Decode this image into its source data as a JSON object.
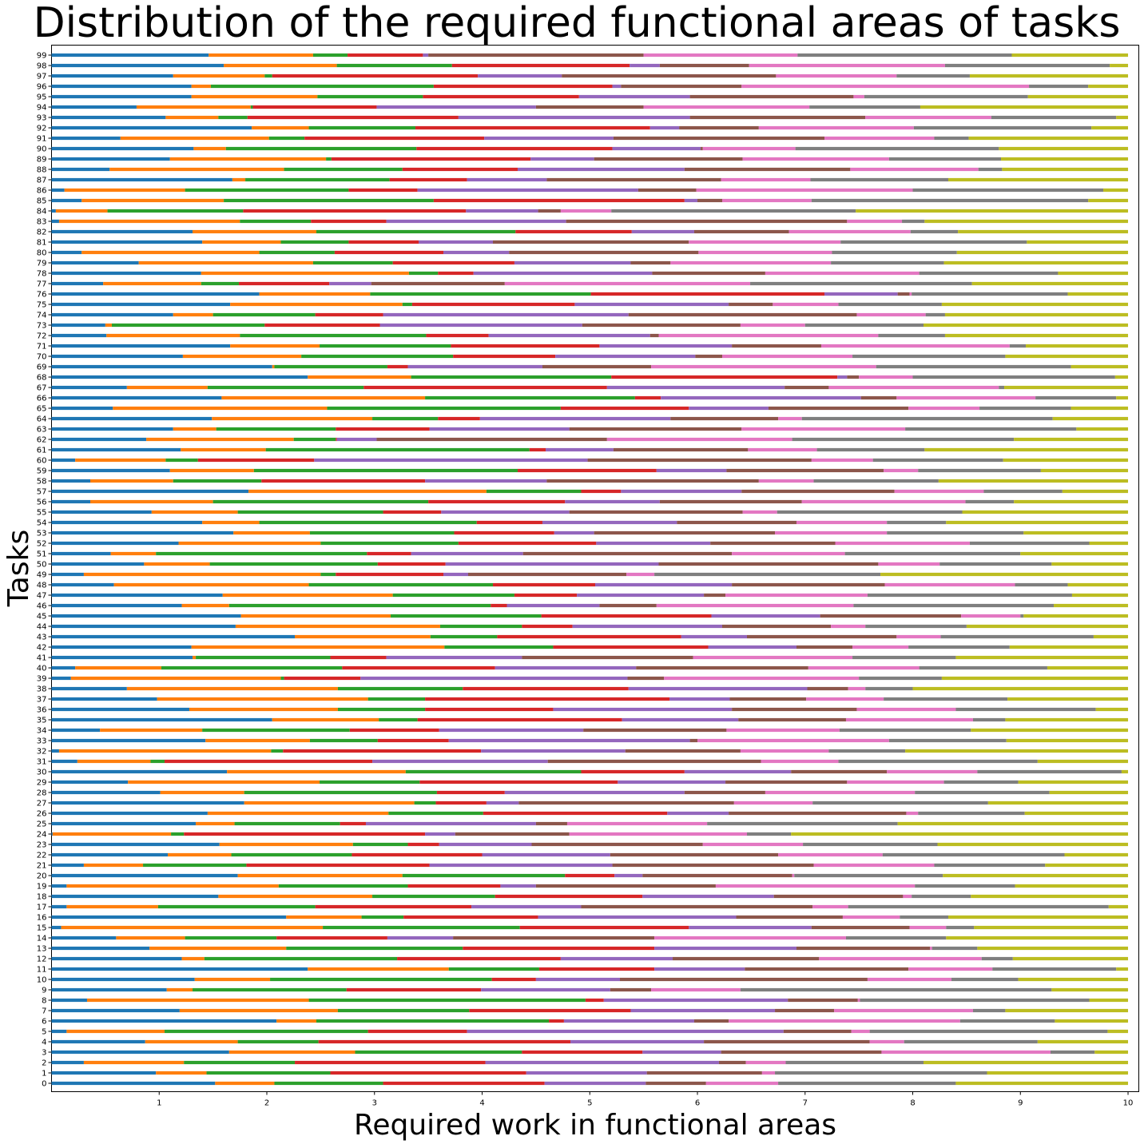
{
  "chart_data": {
    "type": "bar",
    "orientation": "horizontal",
    "stacked": true,
    "title": "Distribution of the required functional areas of tasks",
    "x_label": "Required work in functional areas",
    "y_label": "Tasks",
    "xlim": [
      0,
      10.1
    ],
    "xticks": [
      1,
      2,
      3,
      4,
      5,
      6,
      7,
      8,
      9,
      10
    ],
    "categories": [
      "0",
      "1",
      "2",
      "3",
      "4",
      "5",
      "6",
      "7",
      "8",
      "9",
      "10",
      "11",
      "12",
      "13",
      "14",
      "15",
      "16",
      "17",
      "18",
      "19",
      "20",
      "21",
      "22",
      "23",
      "24",
      "25",
      "26",
      "27",
      "28",
      "29",
      "30",
      "31",
      "32",
      "33",
      "34",
      "35",
      "36",
      "37",
      "38",
      "39",
      "40",
      "41",
      "42",
      "43",
      "44",
      "45",
      "46",
      "47",
      "48",
      "49",
      "50",
      "51",
      "52",
      "53",
      "54",
      "55",
      "56",
      "57",
      "58",
      "59",
      "60",
      "61",
      "62",
      "63",
      "64",
      "65",
      "66",
      "67",
      "68",
      "69",
      "70",
      "71",
      "72",
      "73",
      "74",
      "75",
      "76",
      "77",
      "78",
      "79",
      "80",
      "81",
      "82",
      "83",
      "84",
      "85",
      "86",
      "87",
      "88",
      "89",
      "90",
      "91",
      "92",
      "93",
      "94",
      "95",
      "96",
      "97",
      "98",
      "99"
    ],
    "series": [
      {
        "color": "#1f77b4",
        "values": [
          1.52,
          0.97,
          0.3,
          1.65,
          0.87,
          0.14,
          2.09,
          1.19,
          0.33,
          1.07,
          1.33,
          2.38,
          1.21,
          0.91,
          0.6,
          0.09,
          2.18,
          0.14,
          1.55,
          0.14,
          1.73,
          0.3,
          1.08,
          1.56,
          0.01,
          1.34,
          1.45,
          1.79,
          1.01,
          0.71,
          1.63,
          0.24,
          0.07,
          1.43,
          0.45,
          2.05,
          1.28,
          0.98,
          0.7,
          0.18,
          0.22,
          1.31,
          1.3,
          2.26,
          1.71,
          1.76,
          1.21,
          1.59,
          0.58,
          0.3,
          0.86,
          0.55,
          1.18,
          1.69,
          1.4,
          0.93,
          0.36,
          1.83,
          0.36,
          1.1,
          0.22,
          1.2,
          0.88,
          1.13,
          1.49,
          0.57,
          1.58,
          0.7,
          2.38,
          2.05,
          1.22,
          1.66,
          0.51,
          0.5,
          1.13,
          1.66,
          1.93,
          0.48,
          1.39,
          0.81,
          0.28,
          1.4,
          1.31,
          0.07,
          0.04,
          0.28,
          0.12,
          1.68,
          0.54,
          1.1,
          1.32,
          0.64,
          1.86,
          1.06,
          0.79,
          1.3,
          1.3,
          1.13,
          1.6,
          1.46
        ]
      },
      {
        "color": "#ff7f0e",
        "values": [
          0.55,
          0.47,
          0.93,
          1.17,
          0.86,
          0.91,
          0.37,
          1.47,
          2.06,
          0.24,
          0.7,
          1.31,
          0.21,
          1.27,
          0.64,
          2.43,
          0.7,
          0.85,
          1.43,
          1.97,
          1.53,
          0.55,
          0.59,
          1.24,
          1.1,
          0.36,
          1.68,
          1.58,
          0.78,
          1.78,
          1.66,
          0.68,
          1.97,
          0.97,
          0.95,
          0.99,
          1.38,
          1.96,
          1.96,
          1.95,
          0.8,
          0.03,
          2.35,
          1.26,
          1.9,
          1.39,
          0.44,
          1.58,
          1.81,
          2.2,
          0.61,
          0.42,
          1.32,
          0.71,
          0.53,
          0.8,
          1.14,
          2.21,
          0.77,
          0.78,
          0.84,
          0.79,
          1.37,
          0.4,
          1.49,
          1.99,
          1.89,
          0.75,
          0.96,
          0.02,
          1.1,
          0.83,
          1.24,
          0.06,
          0.37,
          1.6,
          1.03,
          0.91,
          1.93,
          1.62,
          1.65,
          0.73,
          1.15,
          1.68,
          0.48,
          1.32,
          1.12,
          0.12,
          1.62,
          1.45,
          0.3,
          1.38,
          0.53,
          0.49,
          1.06,
          1.17,
          0.18,
          0.85,
          1.05,
          0.97
        ]
      },
      {
        "color": "#2ca02c",
        "values": [
          1.01,
          1.15,
          1.03,
          1.55,
          0.75,
          1.89,
          2.16,
          1.22,
          2.57,
          1.43,
          2.06,
          0.84,
          1.79,
          1.64,
          0.85,
          1.83,
          0.39,
          1.46,
          1.14,
          1.2,
          1.51,
          0.96,
          1.12,
          0.51,
          0.12,
          0.98,
          0.88,
          0.2,
          1.79,
          0.93,
          1.63,
          0.13,
          0.11,
          0.63,
          1.37,
          0.36,
          0.81,
          0.53,
          1.16,
          0.03,
          1.68,
          1.25,
          1.01,
          0.62,
          0.76,
          1.4,
          2.43,
          1.13,
          1.71,
          0.14,
          1.56,
          1.96,
          1.28,
          1.34,
          2.02,
          1.35,
          2.0,
          0.88,
          0.82,
          2.45,
          0.3,
          2.45,
          0.39,
          1.11,
          0.61,
          2.17,
          1.95,
          1.45,
          1.86,
          1.05,
          1.41,
          1.22,
          1.73,
          1.42,
          0.95,
          0.09,
          2.05,
          0.35,
          0.27,
          0.74,
          0.7,
          0.63,
          1.85,
          0.66,
          1.26,
          1.95,
          1.52,
          1.34,
          1.1,
          0.05,
          1.77,
          0.33,
          0.99,
          0.27,
          0.02,
          0.98,
          2.07,
          0.07,
          1.07,
          0.32
        ]
      },
      {
        "color": "#d62728",
        "values": [
          1.5,
          1.82,
          1.77,
          1.12,
          2.34,
          0.92,
          0.14,
          1.5,
          0.17,
          1.25,
          0.41,
          1.07,
          1.52,
          1.78,
          1.03,
          1.57,
          1.25,
          1.45,
          1.37,
          0.86,
          0.46,
          1.7,
          1.21,
          0.29,
          2.24,
          0.24,
          1.71,
          0.47,
          0.63,
          1.84,
          0.96,
          1.93,
          1.84,
          0.66,
          0.83,
          1.9,
          1.19,
          2.27,
          1.54,
          0.71,
          1.42,
          0.52,
          1.44,
          1.71,
          0.47,
          1.58,
          0.15,
          0.58,
          0.95,
          1.0,
          0.63,
          0.41,
          1.28,
          0.93,
          0.61,
          0.54,
          1.27,
          0.37,
          1.52,
          1.29,
          1.08,
          0.15,
          0.01,
          0.87,
          0.39,
          1.19,
          0.24,
          2.26,
          2.1,
          0.19,
          0.95,
          1.38,
          0.58,
          1.07,
          0.63,
          1.51,
          2.17,
          0.84,
          0.33,
          1.13,
          1.01,
          0.65,
          1.08,
          0.7,
          2.07,
          2.33,
          0.64,
          0.72,
          1.07,
          1.85,
          1.82,
          1.67,
          2.18,
          1.96,
          1.15,
          1.45,
          1.66,
          1.91,
          1.65,
          0.7
        ]
      },
      {
        "color": "#9467bd",
        "values": [
          0.94,
          1.12,
          2.17,
          0.73,
          1.24,
          2.94,
          1.21,
          1.34,
          1.71,
          1.2,
          0.78,
          0.84,
          1.04,
          1.32,
          0.61,
          1.14,
          1.84,
          1.02,
          1.22,
          0.33,
          0.26,
          1.7,
          1.19,
          0.86,
          0.28,
          1.58,
          0.57,
          0.3,
          1.67,
          1.0,
          0.99,
          1.63,
          1.34,
          2.24,
          1.34,
          1.08,
          1.66,
          0.56,
          1.66,
          2.48,
          1.31,
          1.26,
          0.82,
          0.61,
          1.39,
          1.01,
          0.86,
          1.18,
          1.27,
          0.23,
          1.98,
          1.04,
          1.06,
          0.37,
          1.25,
          1.19,
          0.88,
          1.12,
          1.13,
          0.65,
          2.54,
          0.63,
          0.37,
          1.3,
          1.77,
          0.74,
          1.86,
          1.65,
          0.09,
          1.25,
          1.3,
          1.23,
          1.5,
          1.88,
          2.28,
          1.43,
          0.68,
          0.39,
          1.66,
          1.08,
          0.61,
          0.69,
          0.58,
          1.67,
          0.67,
          0.12,
          2.05,
          0.74,
          1.55,
          0.59,
          0.82,
          1.2,
          0.27,
          2.15,
          1.48,
          1.03,
          0.08,
          0.78,
          0.28,
          0.05
        ]
      },
      {
        "color": "#8c564b",
        "values": [
          0.56,
          1.07,
          0.25,
          1.49,
          1.54,
          0.63,
          0.32,
          0.55,
          0.65,
          0.38,
          2.3,
          1.52,
          1.36,
          1.24,
          1.87,
          0.91,
          0.99,
          2.15,
          1.2,
          1.67,
          1.39,
          1.87,
          1.56,
          1.59,
          1.06,
          0.29,
          1.65,
          2.0,
          0.75,
          1.13,
          0.89,
          1.98,
          1.07,
          0.07,
          1.33,
          1.0,
          1.16,
          0.71,
          0.38,
          0.34,
          1.6,
          1.59,
          0.52,
          1.39,
          1.01,
          1.31,
          0.53,
          0.2,
          1.42,
          1.47,
          2.04,
          1.94,
          1.16,
          1.68,
          1.11,
          1.61,
          1.32,
          1.42,
          1.97,
          1.46,
          2.08,
          1.25,
          2.14,
          1.6,
          1.0,
          1.3,
          0.33,
          0.41,
          0.11,
          1.01,
          0.25,
          0.83,
          0.08,
          1.47,
          2.12,
          0.41,
          0.11,
          1.24,
          1.05,
          0.37,
          1.76,
          1.82,
          0.88,
          2.61,
          0.21,
          0.23,
          0.54,
          1.62,
          1.54,
          1.38,
          0.02,
          1.96,
          0.74,
          1.63,
          1.0,
          1.52,
          1.12,
          1.99,
          0.83,
          2.0
        ]
      },
      {
        "color": "#e377c2",
        "values": [
          0.67,
          0.12,
          0.37,
          1.57,
          0.32,
          0.17,
          2.15,
          1.29,
          0.02,
          0.83,
          0.78,
          0.78,
          1.51,
          0.02,
          1.78,
          0.34,
          0.53,
          0.33,
          0.08,
          1.85,
          0.02,
          1.12,
          0.97,
          0.93,
          1.65,
          1.3,
          0.11,
          0.73,
          1.39,
          0.9,
          0.84,
          0.72,
          0.82,
          1.78,
          1.05,
          1.18,
          0.92,
          0.72,
          0.16,
          1.81,
          1.03,
          1.48,
          0.52,
          0.41,
          0.32,
          0.55,
          1.83,
          1.32,
          1.21,
          0.26,
          0.57,
          1.05,
          1.25,
          1.04,
          0.84,
          0.32,
          1.52,
          0.83,
          0.51,
          0.32,
          0.57,
          0.64,
          1.72,
          1.52,
          0.22,
          0.66,
          1.29,
          1.58,
          0.5,
          2.09,
          1.21,
          1.75,
          2.04,
          0.6,
          0.64,
          0.61,
          0.02,
          2.28,
          1.43,
          1.49,
          1.24,
          1.41,
          1.13,
          0.51,
          0.47,
          0.83,
          2.01,
          0.83,
          1.19,
          1.36,
          0.86,
          1.02,
          1.44,
          1.17,
          1.54,
          0.1,
          2.67,
          1.12,
          1.82,
          1.43
        ]
      },
      {
        "color": "#7f7f7f",
        "values": [
          1.65,
          1.97,
          1.28,
          0.41,
          1.24,
          2.21,
          0.88,
          0.3,
          2.13,
          2.89,
          0.62,
          1.15,
          0.29,
          0.42,
          0.93,
          0.26,
          0.45,
          2.42,
          0.55,
          0.93,
          1.38,
          1.03,
          1.69,
          1.25,
          0.41,
          1.77,
          0.99,
          1.63,
          1.25,
          0.69,
          1.34,
          1.85,
          0.71,
          1.09,
          1.22,
          0.3,
          1.3,
          1.15,
          0.44,
          0.77,
          1.19,
          0.96,
          0.94,
          1.42,
          0.94,
          0.03,
          1.86,
          1.9,
          0.49,
          2.1,
          1.04,
          1.63,
          1.11,
          1.27,
          0.55,
          1.72,
          0.45,
          0.73,
          1.16,
          1.14,
          1.21,
          1.0,
          2.06,
          1.59,
          2.33,
          0.85,
          0.75,
          0.05,
          1.88,
          1.81,
          1.42,
          0.15,
          0.62,
          1.1,
          0.18,
          0.96,
          1.45,
          2.06,
          1.29,
          1.05,
          1.16,
          1.73,
          0.44,
          0.21,
          2.27,
          2.57,
          1.77,
          1.28,
          0.22,
          1.04,
          1.89,
          0.32,
          1.65,
          1.16,
          1.03,
          1.52,
          0.55,
          0.68,
          1.53,
          1.99
        ]
      },
      {
        "color": "#bcbd22",
        "values": [
          1.6,
          1.31,
          1.9,
          0.31,
          0.84,
          0.19,
          0.68,
          1.14,
          0.36,
          0.71,
          1.02,
          0.11,
          1.07,
          1.4,
          1.69,
          1.43,
          1.67,
          0.18,
          1.46,
          1.05,
          1.72,
          0.77,
          0.59,
          1.77,
          3.13,
          2.14,
          0.96,
          1.3,
          0.73,
          1.02,
          0.06,
          0.84,
          2.07,
          1.13,
          1.46,
          1.14,
          0.3,
          1.12,
          2.0,
          1.73,
          0.75,
          1.6,
          1.1,
          0.32,
          1.5,
          0.97,
          0.69,
          0.52,
          0.56,
          2.3,
          0.71,
          1.0,
          0.36,
          0.97,
          1.69,
          1.54,
          1.06,
          0.61,
          1.76,
          0.81,
          1.16,
          1.89,
          1.06,
          0.48,
          0.7,
          0.53,
          0.11,
          1.15,
          0.12,
          0.53,
          1.14,
          0.95,
          1.7,
          1.9,
          1.7,
          1.73,
          0.56,
          1.45,
          0.65,
          1.71,
          1.59,
          0.94,
          1.58,
          1.89,
          2.53,
          0.37,
          0.23,
          1.67,
          1.17,
          1.18,
          1.2,
          1.48,
          0.34,
          0.11,
          1.93,
          0.93,
          0.37,
          1.47,
          0.17,
          1.08
        ]
      }
    ]
  }
}
